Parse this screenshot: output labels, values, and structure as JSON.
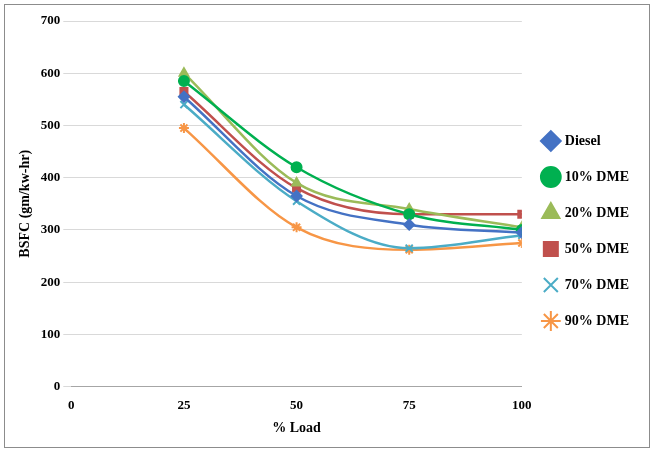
{
  "chart_data": {
    "type": "line",
    "x_label": "% Load",
    "y_label": "BSFC (gm/kw-hr)",
    "x": [
      25,
      50,
      75,
      100
    ],
    "xlim": [
      0,
      100
    ],
    "xticks": [
      0,
      25,
      50,
      75,
      100
    ],
    "ylim": [
      0,
      700
    ],
    "yticks": [
      0,
      100,
      200,
      300,
      400,
      500,
      600,
      700
    ],
    "grid": "y",
    "legend": "right",
    "series": [
      {
        "name": "Diesel",
        "color": "#4472c4",
        "marker": "diamond",
        "values": [
          555,
          365,
          310,
          295
        ]
      },
      {
        "name": "10% DME",
        "color": "#00b050",
        "marker": "circle",
        "values": [
          585,
          420,
          330,
          300
        ]
      },
      {
        "name": "20% DME",
        "color": "#9bbb59",
        "marker": "triangle",
        "values": [
          600,
          390,
          340,
          305
        ]
      },
      {
        "name": "50% DME",
        "color": "#c0504d",
        "marker": "square",
        "values": [
          565,
          380,
          330,
          330
        ]
      },
      {
        "name": "70% DME",
        "color": "#4bacc6",
        "marker": "x",
        "values": [
          540,
          355,
          265,
          290
        ]
      },
      {
        "name": "90% DME",
        "color": "#f79646",
        "marker": "star",
        "values": [
          495,
          305,
          262,
          275
        ]
      }
    ]
  }
}
